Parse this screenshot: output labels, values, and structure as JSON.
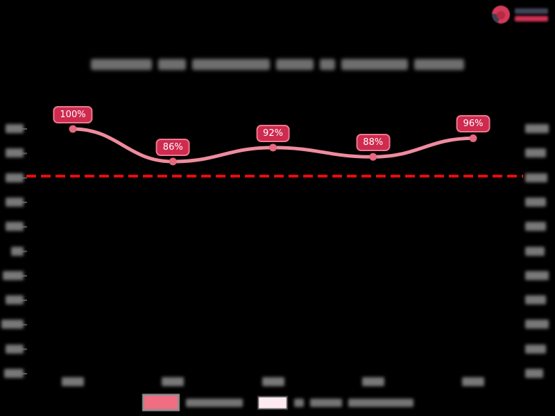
{
  "canvas": {
    "background": "#000000"
  },
  "logo": {
    "redacted": true,
    "icon": "pie-chart-logo",
    "icon_colors": {
      "circle": "#d23a58",
      "wedge": "#3c4154"
    },
    "text_line_colors": [
      "#3f4458",
      "#cf3052"
    ]
  },
  "title": {
    "redacted": true,
    "blur_color": "#6e6e6e"
  },
  "chart_data": {
    "type": "line",
    "title": "[blurred/unreadable]",
    "categories": [
      "[blurred]",
      "[blurred]",
      "[blurred]",
      "[blurred]",
      "[blurred]"
    ],
    "series": [
      {
        "name": "[blurred]",
        "values": [
          100,
          86,
          92,
          88,
          96
        ]
      }
    ],
    "point_labels": [
      "100%",
      "86%",
      "92%",
      "88%",
      "96%"
    ],
    "reference_line": {
      "style": "dashed",
      "color": "#ea0b0b",
      "value_label": "[blurred]"
    },
    "axes": {
      "x_tick_count": 5,
      "y_left_tick_count": 11,
      "y_right_tick_count": 11,
      "tick_labels_blurred": true,
      "grid": false
    },
    "legend_position": "bottom-center",
    "legend": {
      "entries": [
        {
          "swatch_fill": "#f16d81",
          "swatch_border": "#8f8f8f",
          "label": "[blurred]"
        },
        {
          "swatch_fill": "#fdeaf1",
          "swatch_border": "#4a4a4a",
          "label": "[blurred]"
        }
      ]
    },
    "colors": {
      "line": "#ef8b9d",
      "marker": "#e5697f",
      "label_bg": "#ce2b4f",
      "label_border": "#f0788d",
      "label_text": "#ffffff"
    }
  }
}
